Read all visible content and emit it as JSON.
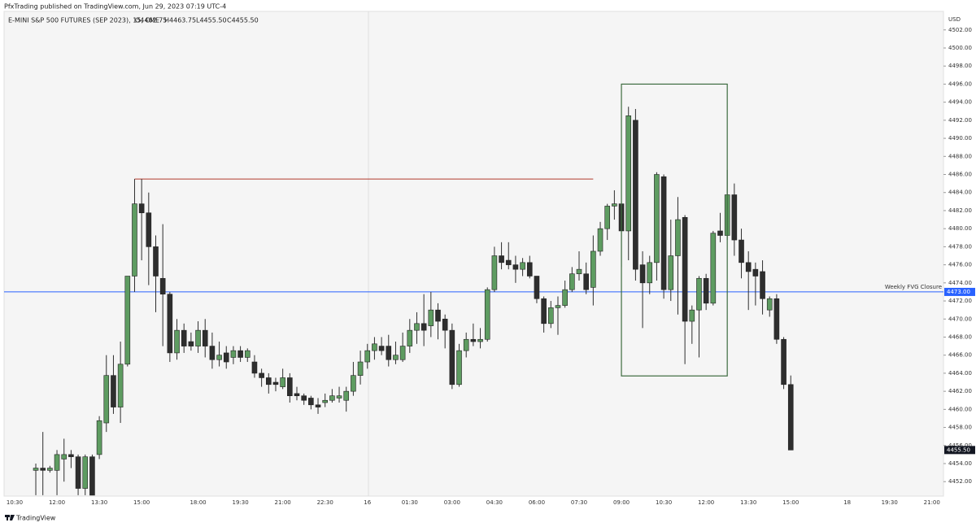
{
  "header": {
    "published": "PfxTrading published on TradingView.com, Jun 29, 2023 07:19 UTC-4",
    "brand": "TradingView"
  },
  "chart_data": {
    "type": "candlestick",
    "legend_symbol": "E-MINI S&P 500 FUTURES (SEP 2023), 15, CME",
    "legend_ohlc": [
      "O4462.75",
      "H4463.75",
      "L4455.50",
      "C4455.50"
    ],
    "currency": "USD",
    "categories": [
      "10:30",
      null,
      null,
      null,
      null,
      null,
      "12:00",
      null,
      null,
      null,
      null,
      null,
      "13:30",
      null,
      null,
      null,
      null,
      null,
      "15:00",
      null,
      null,
      null,
      null,
      null,
      null,
      null,
      "18:00",
      null,
      null,
      null,
      null,
      null,
      "19:30",
      null,
      null,
      null,
      null,
      null,
      "21:00",
      null,
      null,
      null,
      null,
      null,
      "22:30",
      null,
      null,
      null,
      null,
      null,
      "16",
      null,
      null,
      null,
      null,
      null,
      "01:30",
      null,
      null,
      null,
      null,
      null,
      "03:00",
      null,
      null,
      null,
      null,
      null,
      "04:30",
      null,
      null,
      null,
      null,
      null,
      "06:00",
      null,
      null,
      null,
      null,
      null,
      "07:30",
      null,
      null,
      null,
      null,
      null,
      "09:00",
      null,
      null,
      null,
      null,
      null,
      "10:30",
      null,
      null,
      null,
      null,
      null,
      "12:00",
      null,
      null,
      null,
      null,
      null,
      "13:30",
      null,
      null,
      null,
      null,
      null,
      "15:00",
      null,
      null,
      null,
      null,
      null,
      null,
      null,
      "18",
      null,
      null,
      null,
      null,
      null,
      "19:30",
      null,
      null,
      null,
      null,
      null,
      "21:00",
      null
    ],
    "open": [
      null,
      null,
      null,
      4453.25,
      4453.5,
      4453.25,
      4453.25,
      4454.5,
      4455,
      4454.75,
      4451.25,
      4454.75,
      4455,
      4458.5,
      4463.75,
      4460.25,
      4465,
      4474.75,
      4482.75,
      4481.75,
      4478,
      4474.5,
      4472.75,
      4466.25,
      4468.75,
      4467.5,
      4467,
      4468.75,
      4467,
      4465.5,
      4466.25,
      4465.75,
      4466.5,
      4465.75,
      4465.25,
      4464,
      4463.5,
      4463,
      4462.5,
      4463.5,
      4461.75,
      4461.5,
      4461.25,
      4460.5,
      4460.75,
      4461,
      4461.25,
      4461,
      4462,
      4463.75,
      4465.25,
      4466.5,
      4467,
      4467,
      4465.5,
      4465.5,
      4467,
      4468.75,
      4469.5,
      4469.25,
      4471,
      4470,
      4468.75,
      4462.75,
      4466.5,
      4467.75,
      4467.5,
      4467.75,
      4473.25,
      4477,
      4476.5,
      4476,
      4475.5,
      4476.25,
      4474.75,
      4472.25,
      4469.5,
      4471.25,
      4471.5,
      4473.25,
      4475,
      4475,
      4473.5,
      4477.5,
      4480,
      4482.5,
      4482.75,
      4479.75,
      4492,
      4476,
      4474,
      4476.25,
      4485.75,
      4473.25,
      4477,
      4481.25,
      4469.75,
      4471,
      4474.5,
      4471.75,
      4479.75,
      4479.25,
      4483.75,
      4478.75,
      4476.25,
      4475.5,
      4475.25,
      4471,
      4472.25,
      4467.75,
      4462.75,
      null,
      null,
      null,
      null,
      null,
      null,
      null,
      null,
      null,
      null,
      null,
      null,
      null,
      null,
      null,
      null,
      null,
      null,
      null,
      null,
      null
    ],
    "high": [
      null,
      null,
      null,
      4454,
      4457.5,
      4453.75,
      4455.5,
      4456.75,
      4455.5,
      4455,
      4455,
      4455,
      4459.25,
      4466,
      4466,
      4467.5,
      4474.75,
      4485.5,
      4485.5,
      4484,
      4479.25,
      4480.5,
      4473,
      4470,
      4469.5,
      4468.5,
      4469.75,
      4470,
      4468.5,
      4467.5,
      4467,
      4467,
      4467,
      4466.75,
      4466,
      4464.5,
      4464,
      4463.5,
      4464.5,
      4464,
      4462.5,
      4461.75,
      4461.5,
      4461.25,
      4461.75,
      4462.25,
      4462.5,
      4462.5,
      4465.25,
      4466.5,
      4467.25,
      4468,
      4468,
      4468.25,
      4467.5,
      4468.5,
      4470,
      4470.75,
      4472.75,
      4473,
      4471.75,
      4470.5,
      4469.5,
      4467.25,
      4468.5,
      4469.5,
      4469,
      4473.5,
      4478,
      4478.5,
      4478.5,
      4477,
      4476.75,
      4477,
      4474.75,
      4472.5,
      4472,
      4472.5,
      4474.25,
      4475.75,
      4477.5,
      4476.25,
      4479.25,
      4480.75,
      4482.75,
      4484.25,
      4483,
      4493.5,
      4493.25,
      4477.5,
      4477,
      4486.25,
      4486,
      4481,
      4483.5,
      4481.5,
      4471.5,
      4474.75,
      4475,
      4479.75,
      4481.75,
      4486.5,
      4485,
      4480,
      4477.5,
      4476.25,
      4476.5,
      4472.5,
      4472.75,
      4468,
      4463.75,
      null,
      null,
      null,
      null,
      null,
      null,
      null,
      null,
      null,
      null,
      null,
      null,
      null,
      null,
      null,
      null,
      null,
      null,
      null,
      null,
      null
    ],
    "low": [
      null,
      null,
      null,
      4450.5,
      4450.5,
      4453,
      4450.5,
      4452,
      4453.5,
      4450.5,
      4450.5,
      4450.5,
      4454.5,
      4457.5,
      4459.5,
      4458.5,
      4464.75,
      4473,
      4476.5,
      4473.75,
      4470.75,
      4467,
      4465.25,
      4465.5,
      4466.25,
      4466.5,
      4466.25,
      4465.75,
      4464.5,
      4464.75,
      4464.5,
      4465,
      4465.25,
      4465.25,
      4463.5,
      4462.5,
      4461.75,
      4462,
      4462.25,
      4460.75,
      4461,
      4460.5,
      4460,
      4459.5,
      4460.25,
      4460.75,
      4460.75,
      4459.75,
      4461.5,
      4462.75,
      4464.5,
      4465.5,
      4466,
      4464.75,
      4465,
      4465.25,
      4466.25,
      4467.25,
      4467,
      4468,
      4467.75,
      4466.75,
      4462.25,
      4462.5,
      4465.75,
      4467,
      4466.75,
      4467.5,
      4473,
      4475.5,
      4475.5,
      4474,
      4474.75,
      4474.5,
      4471.75,
      4468.5,
      4469,
      4468.25,
      4471.25,
      4473,
      4474.25,
      4472.75,
      4471.5,
      4477,
      4478.75,
      4481,
      4475.75,
      4476.5,
      4474.25,
      4469,
      4472.75,
      4474.25,
      4472.25,
      4472,
      4470.5,
      4465,
      4467.25,
      4465.75,
      4471,
      4471.5,
      4478.5,
      4478.75,
      4477,
      4474.5,
      4471,
      4471.5,
      4470.5,
      4470.25,
      4467.25,
      4462.25,
      4455.5,
      null,
      null,
      null,
      null,
      null,
      null,
      null,
      null,
      null,
      null,
      null,
      null,
      null,
      null,
      null,
      null,
      null,
      null,
      null,
      null,
      null
    ],
    "close": [
      null,
      null,
      null,
      4453.5,
      4453.25,
      4453.5,
      4455,
      4455,
      4454.75,
      4451.25,
      4454.75,
      4450.5,
      4458.75,
      4463.75,
      4460.25,
      4465,
      4474.75,
      4482.75,
      4481.75,
      4478,
      4474.75,
      4472.75,
      4466.25,
      4468.75,
      4467,
      4467,
      4468.75,
      4467,
      4465.5,
      4466,
      4465.25,
      4466.5,
      4465.75,
      4466.5,
      4464,
      4463.5,
      4462.75,
      4462.75,
      4463.5,
      4461.5,
      4461.5,
      4461,
      4460.5,
      4460.25,
      4461,
      4461.5,
      4461.5,
      4462,
      4463.75,
      4465.25,
      4466.5,
      4467.25,
      4466.5,
      4465.5,
      4466,
      4467,
      4468.75,
      4469.5,
      4468.75,
      4471,
      4469.75,
      4468.75,
      4462.75,
      4466.5,
      4467.75,
      4467.5,
      4467.75,
      4473.25,
      4477,
      4476.25,
      4476,
      4475.5,
      4476.25,
      4474.75,
      4472.25,
      4469.5,
      4471.25,
      4471.5,
      4473.25,
      4475,
      4475.5,
      4473.25,
      4477.5,
      4480,
      4482.5,
      4482.75,
      4479.75,
      4492.5,
      4475.5,
      4474,
      4476.25,
      4486,
      4473.25,
      4477,
      4481,
      4469.75,
      4471,
      4474.5,
      4471.75,
      4479.5,
      4479.25,
      4483.75,
      4478.75,
      4476.25,
      4475.25,
      4474.75,
      4472.25,
      4472.25,
      4467.75,
      4462.75,
      4455.5,
      null,
      null,
      null,
      null,
      null,
      null,
      null,
      null,
      null,
      null,
      null,
      null,
      null,
      null,
      null,
      null,
      null,
      null,
      null,
      null,
      null
    ],
    "up_color": "#5e9c61",
    "down_color": "#2e2e2e",
    "wick_color": "#2e2e2e",
    "ylim": [
      4450.4,
      4504.05
    ],
    "yticks": [
      {
        "value": 4452,
        "label": "4452.00"
      },
      {
        "value": 4454,
        "label": "4454.00"
      },
      {
        "value": 4456,
        "label": "4456.00"
      },
      {
        "value": 4458,
        "label": "4458.00"
      },
      {
        "value": 4460,
        "label": "4460.00"
      },
      {
        "value": 4462,
        "label": "4462.00"
      },
      {
        "value": 4464,
        "label": "4464.00"
      },
      {
        "value": 4466,
        "label": "4466.00"
      },
      {
        "value": 4468,
        "label": "4468.00"
      },
      {
        "value": 4470,
        "label": "4470.00"
      },
      {
        "value": 4472,
        "label": "4472.00"
      },
      {
        "value": 4474,
        "label": "4474.00"
      },
      {
        "value": 4476,
        "label": "4476.00"
      },
      {
        "value": 4478,
        "label": "4478.00"
      },
      {
        "value": 4480,
        "label": "4480.00"
      },
      {
        "value": 4482,
        "label": "4482.00"
      },
      {
        "value": 4484,
        "label": "4484.00"
      },
      {
        "value": 4486,
        "label": "4486.00"
      },
      {
        "value": 4488,
        "label": "4488.00"
      },
      {
        "value": 4490,
        "label": "4490.00"
      },
      {
        "value": 4492,
        "label": "4492.00"
      },
      {
        "value": 4494,
        "label": "4494.00"
      },
      {
        "value": 4496,
        "label": "4496.00"
      },
      {
        "value": 4498,
        "label": "4498.00"
      },
      {
        "value": 4500,
        "label": "4500.00"
      },
      {
        "value": 4502,
        "label": "4502.00"
      }
    ],
    "hline": {
      "name": "Weekly FVG Closure",
      "value": 4473,
      "label": "4473.00",
      "color": "#2962ff"
    },
    "level": {
      "value": 4485.5,
      "from": 17,
      "to": 82,
      "color": "#b03a2e"
    },
    "box": {
      "from": 86,
      "to": 101,
      "top": 4496,
      "bottom": 4463.7,
      "color": "#3d6b3f"
    },
    "last_price": {
      "value": 4455.5,
      "label": "4455.50"
    }
  }
}
